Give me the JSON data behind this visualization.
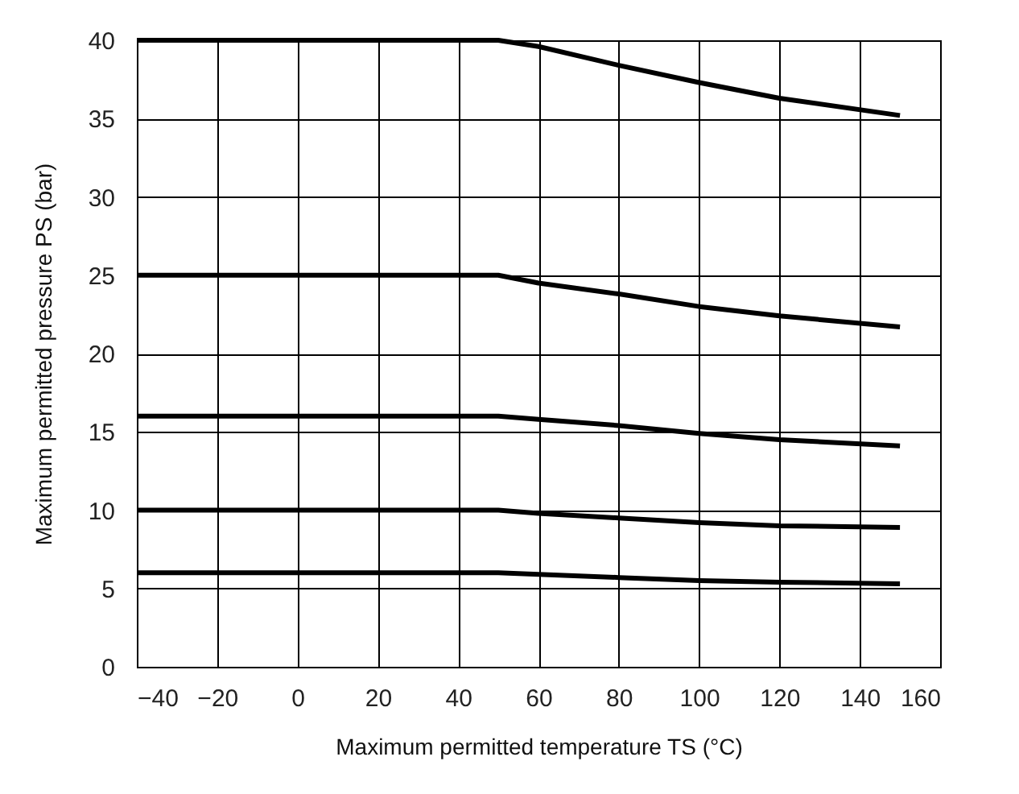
{
  "chart_data": {
    "type": "line",
    "xlabel": "Maximum permitted temperature TS (°C)",
    "ylabel": "Maximum permitted pressure PS      (bar)",
    "x": [
      -40,
      50,
      60,
      80,
      100,
      120,
      150
    ],
    "series": [
      {
        "color": "#000000",
        "values": [
          40,
          40,
          39.6,
          38.4,
          37.3,
          36.3,
          35.2
        ]
      },
      {
        "color": "#000000",
        "values": [
          25,
          25,
          24.5,
          23.8,
          23.0,
          22.4,
          21.7
        ]
      },
      {
        "color": "#000000",
        "values": [
          16,
          16,
          15.8,
          15.4,
          14.9,
          14.5,
          14.1
        ]
      },
      {
        "color": "#000000",
        "values": [
          10,
          10,
          9.8,
          9.5,
          9.2,
          9.0,
          8.9
        ]
      },
      {
        "color": "#000000",
        "values": [
          6,
          6,
          5.9,
          5.7,
          5.5,
          5.4,
          5.3
        ]
      }
    ],
    "xlim": [
      -40,
      160
    ],
    "xticks": [
      -40,
      -20,
      0,
      20,
      40,
      60,
      80,
      100,
      120,
      140,
      160
    ],
    "ylim": [
      0,
      40
    ],
    "yticks": [
      0,
      5,
      10,
      15,
      20,
      25,
      30,
      35,
      40
    ],
    "grid": true,
    "legend": false,
    "marker": "none",
    "line_style": "solid"
  }
}
